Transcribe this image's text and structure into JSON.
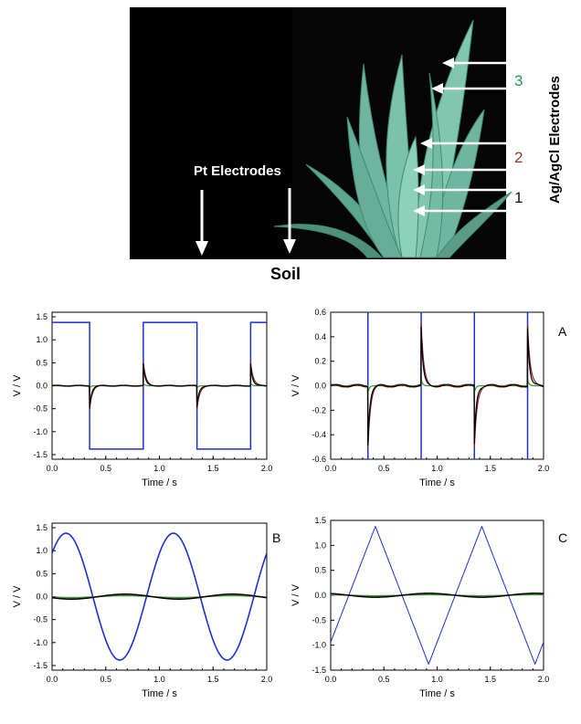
{
  "photo": {
    "pt_label": "Pt Electrodes",
    "soil_label": "Soil",
    "agagcl_label": "Ag/AgCl Electrodes",
    "num1": "1",
    "num2": "2",
    "num3": "3",
    "colors": {
      "num1": "#111111",
      "num2": "#8b3a2e",
      "num3": "#1a9b55",
      "arrow": "#ffffff"
    }
  },
  "series_colors": {
    "pair1": "#000000",
    "pair2": "#8b1a1a",
    "pair3": "#2e9b2e",
    "applied": "#1c2fd4"
  },
  "chart_data": [
    {
      "id": "A-left",
      "type": "line",
      "waveform": "square",
      "panel_label": "",
      "xlabel": "Time / s",
      "ylabel": "V / V",
      "xlim": [
        0,
        2
      ],
      "ylim": [
        -1.6,
        1.6
      ],
      "xticks": [
        "0.0",
        "0.5",
        "1.0",
        "1.5",
        "2.0"
      ],
      "yticks": [
        "-1.5",
        "-1.0",
        "-0.5",
        "0.0",
        "0.5",
        "1.0",
        "1.5"
      ],
      "applied": {
        "amplitude": 1.38,
        "period": 1.0,
        "transitions": [
          0.35,
          0.85,
          1.35,
          1.85
        ]
      },
      "spike_peak": 0.5
    },
    {
      "id": "A-right",
      "type": "line",
      "waveform": "square",
      "panel_label": "A",
      "xlabel": "Time / s",
      "ylabel": "V / V",
      "xlim": [
        0,
        2
      ],
      "ylim": [
        -0.6,
        0.6
      ],
      "xticks": [
        "0.0",
        "0.5",
        "1.0",
        "1.5",
        "2.0"
      ],
      "yticks": [
        "-0.6",
        "-0.4",
        "-0.2",
        "0.0",
        "0.2",
        "0.4",
        "0.6"
      ],
      "applied": {
        "amplitude": 1.38,
        "period": 1.0,
        "transitions": [
          0.35,
          0.85,
          1.35,
          1.85
        ]
      },
      "spike_peak": 0.5
    },
    {
      "id": "B",
      "type": "line",
      "waveform": "sine",
      "panel_label": "B",
      "xlabel": "Time / s",
      "ylabel": "V / V",
      "xlim": [
        0,
        2
      ],
      "ylim": [
        -1.6,
        1.6
      ],
      "xticks": [
        "0.0",
        "0.5",
        "1.0",
        "1.5",
        "2.0"
      ],
      "yticks": [
        "-1.5",
        "-1.0",
        "-0.5",
        "0.0",
        "0.5",
        "1.0",
        "1.5"
      ],
      "applied": {
        "amplitude": 1.38,
        "period": 1.0,
        "peak_time": 0.13
      },
      "response_amplitude": 0.05
    },
    {
      "id": "C",
      "type": "line",
      "waveform": "triangle",
      "panel_label": "C",
      "xlabel": "Time / s",
      "ylabel": "V / V",
      "xlim": [
        0,
        2
      ],
      "ylim": [
        -1.5,
        1.5
      ],
      "xticks": [
        "0.0",
        "0.5",
        "1.0",
        "1.5",
        "2.0"
      ],
      "yticks": [
        "-1.5",
        "-1.0",
        "-0.5",
        "0.0",
        "0.5",
        "1.0",
        "1.5"
      ],
      "applied": {
        "amplitude": 1.38,
        "period": 1.0,
        "peak_time": 0.42,
        "start_value": -1.05
      },
      "response_amplitude": 0.04
    }
  ]
}
